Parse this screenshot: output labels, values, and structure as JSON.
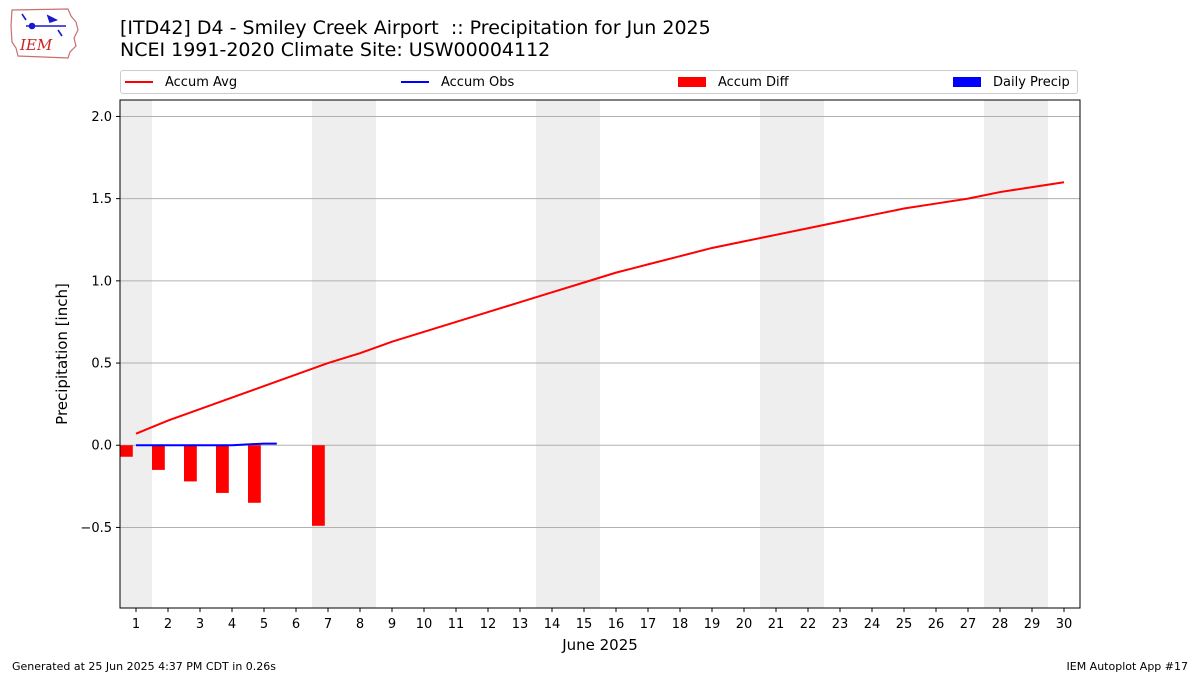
{
  "header": {
    "title_line1": "[ITD42] D4 - Smiley Creek Airport  :: Precipitation for Jun 2025",
    "title_line2": "NCEI 1991-2020 Climate Site: USW00004112",
    "logo_text": "IEM"
  },
  "legend": {
    "accum_avg": "Accum Avg",
    "accum_obs": "Accum Obs",
    "accum_diff": "Accum Diff",
    "daily_precip": "Daily Precip"
  },
  "footer": {
    "generated": "Generated at 25 Jun 2025 4:37 PM CDT in 0.26s",
    "app": "IEM Autoplot App #17"
  },
  "colors": {
    "avg": "#ff0000",
    "obs": "#0000ff",
    "diff": "#ff0000",
    "daily": "#0000ff",
    "weekend": "#eeeeee",
    "grid": "#b0b0b0"
  },
  "chart_data": {
    "type": "line",
    "title": "[ITD42] D4 - Smiley Creek Airport  :: Precipitation for Jun 2025",
    "xlabel": "June 2025",
    "ylabel": "Precipitation [inch]",
    "xlim": [
      0.5,
      30.5
    ],
    "ylim": [
      -0.99,
      2.1
    ],
    "yticks": [
      -0.5,
      0.0,
      0.5,
      1.0,
      1.5,
      2.0
    ],
    "ytick_labels": [
      "−0.5",
      "0.0",
      "0.5",
      "1.0",
      "1.5",
      "2.0"
    ],
    "x": [
      1,
      2,
      3,
      4,
      5,
      6,
      7,
      8,
      9,
      10,
      11,
      12,
      13,
      14,
      15,
      16,
      17,
      18,
      19,
      20,
      21,
      22,
      23,
      24,
      25,
      26,
      27,
      28,
      29,
      30
    ],
    "weekend_spans": [
      [
        0.5,
        1.5
      ],
      [
        6.5,
        8.5
      ],
      [
        13.5,
        15.5
      ],
      [
        20.5,
        22.5
      ],
      [
        27.5,
        29.5
      ]
    ],
    "grid": "horizontal",
    "legend_position": "top",
    "series": [
      {
        "name": "Accum Avg",
        "kind": "line",
        "x": [
          1,
          2,
          3,
          4,
          5,
          6,
          7,
          8,
          9,
          10,
          11,
          12,
          13,
          14,
          15,
          16,
          17,
          18,
          19,
          20,
          21,
          22,
          23,
          24,
          25,
          26,
          27,
          28,
          29,
          30
        ],
        "values": [
          0.07,
          0.15,
          0.22,
          0.29,
          0.36,
          0.43,
          0.5,
          0.56,
          0.63,
          0.69,
          0.75,
          0.81,
          0.87,
          0.93,
          0.99,
          1.05,
          1.1,
          1.15,
          1.2,
          1.24,
          1.28,
          1.32,
          1.36,
          1.4,
          1.44,
          1.47,
          1.5,
          1.54,
          1.57,
          1.6
        ]
      },
      {
        "name": "Accum Obs",
        "kind": "line",
        "x": [
          1,
          2,
          3,
          4,
          5,
          5.4
        ],
        "values": [
          0.0,
          0.0,
          0.0,
          0.0,
          0.01,
          0.01
        ]
      },
      {
        "name": "Accum Diff",
        "kind": "bar",
        "x": [
          1,
          2,
          3,
          4,
          5,
          7
        ],
        "values": [
          -0.07,
          -0.15,
          -0.22,
          -0.29,
          -0.35,
          -0.49
        ]
      },
      {
        "name": "Daily Precip",
        "kind": "bar",
        "x": [],
        "values": []
      }
    ]
  }
}
